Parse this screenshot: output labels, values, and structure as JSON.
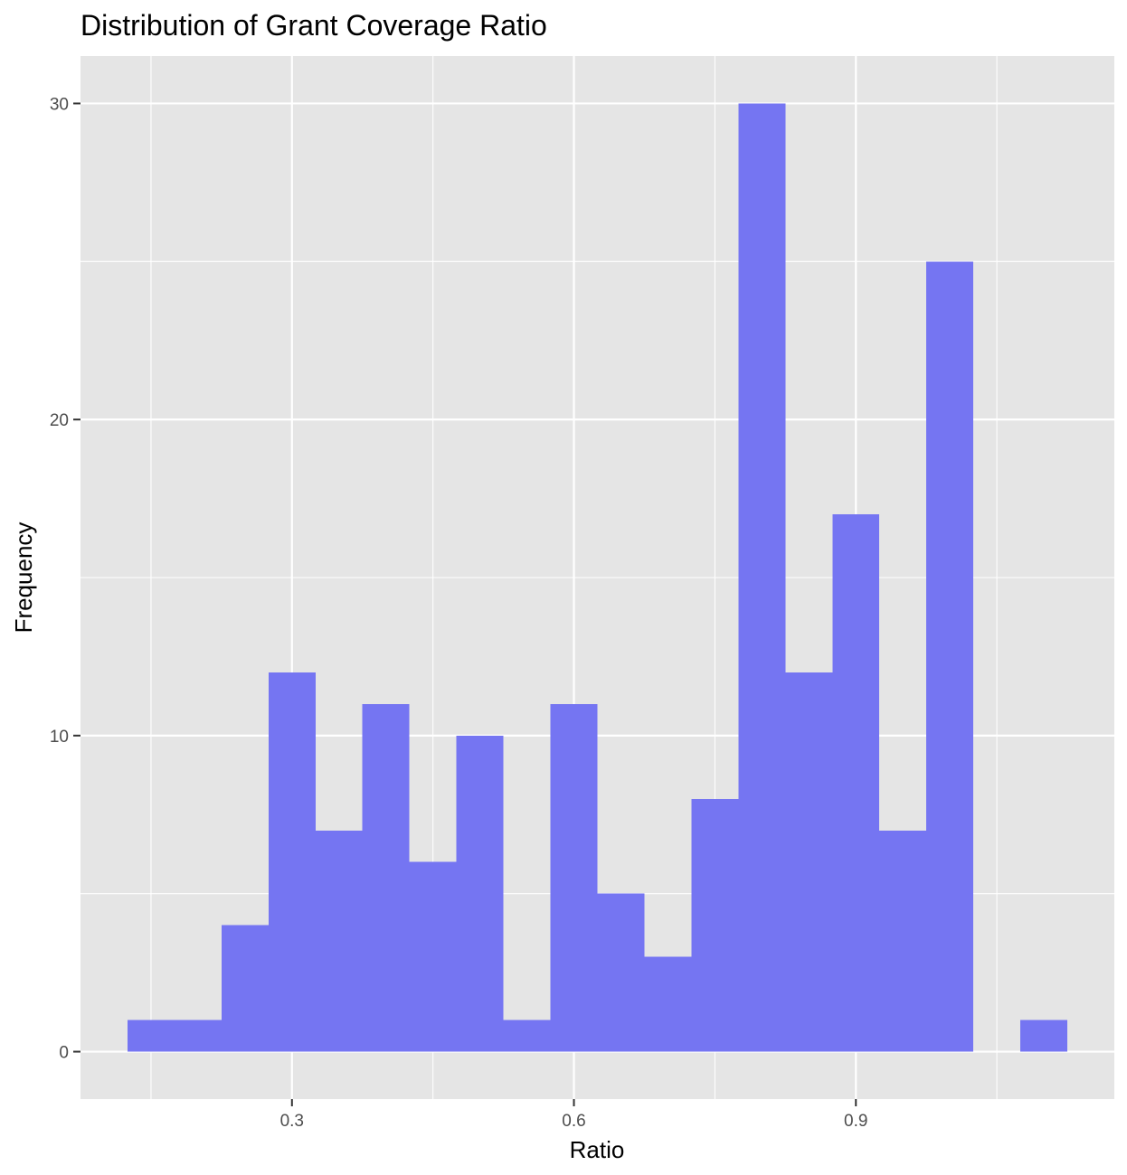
{
  "chart_data": {
    "type": "bar",
    "title": "Distribution of Grant Coverage Ratio",
    "xlabel": "Ratio",
    "ylabel": "Frequency",
    "bin_width": 0.05,
    "bins": [
      {
        "start": 0.125,
        "end": 0.175,
        "count": 1
      },
      {
        "start": 0.175,
        "end": 0.225,
        "count": 1
      },
      {
        "start": 0.225,
        "end": 0.275,
        "count": 4
      },
      {
        "start": 0.275,
        "end": 0.325,
        "count": 12
      },
      {
        "start": 0.325,
        "end": 0.375,
        "count": 7
      },
      {
        "start": 0.375,
        "end": 0.425,
        "count": 11
      },
      {
        "start": 0.425,
        "end": 0.475,
        "count": 6
      },
      {
        "start": 0.475,
        "end": 0.525,
        "count": 10
      },
      {
        "start": 0.525,
        "end": 0.575,
        "count": 1
      },
      {
        "start": 0.575,
        "end": 0.625,
        "count": 11
      },
      {
        "start": 0.625,
        "end": 0.675,
        "count": 5
      },
      {
        "start": 0.675,
        "end": 0.725,
        "count": 3
      },
      {
        "start": 0.725,
        "end": 0.775,
        "count": 8
      },
      {
        "start": 0.775,
        "end": 0.825,
        "count": 30
      },
      {
        "start": 0.825,
        "end": 0.875,
        "count": 12
      },
      {
        "start": 0.875,
        "end": 0.925,
        "count": 17
      },
      {
        "start": 0.925,
        "end": 0.975,
        "count": 7
      },
      {
        "start": 0.975,
        "end": 1.025,
        "count": 25
      },
      {
        "start": 1.025,
        "end": 1.075,
        "count": 0
      },
      {
        "start": 1.075,
        "end": 1.125,
        "count": 1
      }
    ],
    "x_ticks": [
      {
        "value": 0.3,
        "label": "0.3"
      },
      {
        "value": 0.6,
        "label": "0.6"
      },
      {
        "value": 0.9,
        "label": "0.9"
      }
    ],
    "y_ticks": [
      {
        "value": 0,
        "label": "0"
      },
      {
        "value": 10,
        "label": "10"
      },
      {
        "value": 20,
        "label": "20"
      },
      {
        "value": 30,
        "label": "30"
      }
    ],
    "x_minor_grid": [
      0.15,
      0.45,
      0.75,
      1.05
    ],
    "y_minor_grid": [
      5,
      15,
      25
    ],
    "xlim": [
      0.075,
      1.175
    ],
    "ylim": [
      -1.5,
      31.5
    ],
    "grid": true,
    "legend": "none",
    "colors": {
      "bar_fill": "#7575F2",
      "panel_background": "#E5E5E5",
      "grid_line": "#FFFFFF",
      "tick_mark": "#333333"
    }
  }
}
